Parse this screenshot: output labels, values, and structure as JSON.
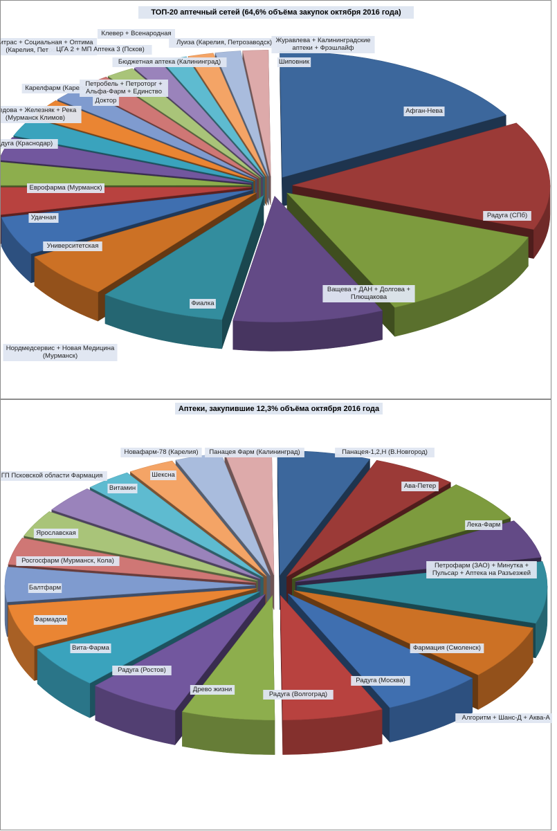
{
  "chart_data": [
    {
      "type": "pie",
      "title": "ТОП-20 аптечный сетей (64,6% объёма закупок октября 2016 года)",
      "series": [
        {
          "label": "Афган-Нева",
          "value": 17.0,
          "color": "#3c679c"
        },
        {
          "label": "Радуга (СПб)",
          "value": 14.0,
          "color": "#9b3a37"
        },
        {
          "label": "Ващева + ДАН + Долгова + Плющакова",
          "value": 12.5,
          "color": "#7d9b3e"
        },
        {
          "label": "Фиалка",
          "value": 9.5,
          "color": "#634a86"
        },
        {
          "label": "Нордмедсервис + Новая Медицина (Мурманск)",
          "value": 8.0,
          "color": "#338d9e"
        },
        {
          "label": "Университетская",
          "value": 6.0,
          "color": "#cc7125"
        },
        {
          "label": "Удачная",
          "value": 5.0,
          "color": "#3f6fb0"
        },
        {
          "label": "Еврофарма (Мурманск)",
          "value": 3.5,
          "color": "#b8423f"
        },
        {
          "label": "Радуга (Краснодар)",
          "value": 3.0,
          "color": "#8dae4d"
        },
        {
          "label": "Седова + Железняк + Река (Мурманск Климов)",
          "value": 3.0,
          "color": "#72579e"
        },
        {
          "label": "Карелфарм (Карелия)",
          "value": 2.5,
          "color": "#3aa3bd"
        },
        {
          "label": "Митрас + Социальная + Оптима (Карелия, Петрозаводск)",
          "value": 2.5,
          "color": "#ea8533"
        },
        {
          "label": "Доктор",
          "value": 2.0,
          "color": "#7f9bcf"
        },
        {
          "label": "Петробель + Петроторг + Альфа-Фарм + Единство",
          "value": 2.0,
          "color": "#cf7775"
        },
        {
          "label": "ЦГА 2 + МП Аптека 3 (Псков)",
          "value": 1.8,
          "color": "#a9c479"
        },
        {
          "label": "Клевер + Всенародная",
          "value": 1.8,
          "color": "#9a83bb"
        },
        {
          "label": "Бюджетная аптека (Калининград)",
          "value": 1.6,
          "color": "#5ebbd0"
        },
        {
          "label": "Луиза (Карелия, Петрозаводск)",
          "value": 1.6,
          "color": "#f4a466"
        },
        {
          "label": "Журавлева + Калининградские аптеки + Фрэшлайф",
          "value": 1.6,
          "color": "#a9bcdd"
        },
        {
          "label": "Шиповник",
          "value": 1.6,
          "color": "#ddaaaa"
        }
      ]
    },
    {
      "type": "pie",
      "title": "Аптеки, закупившие 12,3% объёма октября 2016 года",
      "series": [
        {
          "label": "Панацея-1,2,Н (В.Новгород)",
          "value": 6.0,
          "color": "#3c679c"
        },
        {
          "label": "Ава-Петер",
          "value": 5.5,
          "color": "#9b3a37"
        },
        {
          "label": "Лека-Фарм",
          "value": 5.5,
          "color": "#7d9b3e"
        },
        {
          "label": "Петрофарм (ЗАО) + Минутка + Пульсар + Аптека на Разъезжей",
          "value": 5.0,
          "color": "#634a86"
        },
        {
          "label": "Алгоритм + Шанс-Д + Аква-А + ДНК",
          "value": 8.0,
          "color": "#338d9e"
        },
        {
          "label": "Фармация (Смоленск)",
          "value": 7.0,
          "color": "#cc7125"
        },
        {
          "label": "Радуга (Москва)",
          "value": 6.5,
          "color": "#3f6fb0"
        },
        {
          "label": "Радуга (Волгоград)",
          "value": 6.5,
          "color": "#b8423f"
        },
        {
          "label": "Древо жизни",
          "value": 6.0,
          "color": "#8dae4d"
        },
        {
          "label": "Радуга (Ростов)",
          "value": 6.0,
          "color": "#72579e"
        },
        {
          "label": "Вита-Фарма",
          "value": 5.5,
          "color": "#3aa3bd"
        },
        {
          "label": "Фармадом",
          "value": 5.5,
          "color": "#ea8533"
        },
        {
          "label": "Балтфарм",
          "value": 4.5,
          "color": "#7f9bcf"
        },
        {
          "label": "Росгосфарм (Мурманск, Кола)",
          "value": 3.5,
          "color": "#cf7775"
        },
        {
          "label": "Ярославская",
          "value": 3.5,
          "color": "#a9c479"
        },
        {
          "label": "ГП Псковской области Фармация",
          "value": 3.5,
          "color": "#9a83bb"
        },
        {
          "label": "Витамин",
          "value": 3.0,
          "color": "#5ebbd0"
        },
        {
          "label": "Шексна",
          "value": 3.0,
          "color": "#f4a466"
        },
        {
          "label": "Новафарм-78 (Карелия)",
          "value": 3.0,
          "color": "#a9bcdd"
        },
        {
          "label": "Панацея Фарм (Калининград)",
          "value": 3.0,
          "color": "#ddaaaa"
        }
      ]
    }
  ]
}
